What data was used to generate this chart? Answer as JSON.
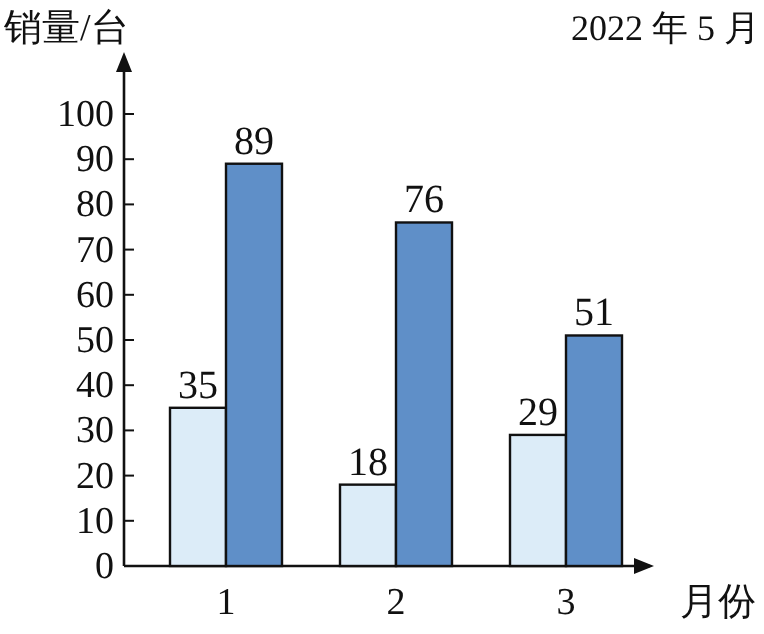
{
  "chart_data": {
    "type": "bar",
    "title": "2022 年 5 月",
    "ylabel": "销量/台",
    "xlabel": "月份",
    "categories": [
      "1",
      "2",
      "3"
    ],
    "series": [
      {
        "color": "#dcecf8",
        "values": [
          35,
          18,
          29
        ]
      },
      {
        "color": "#5f8fc8",
        "values": [
          89,
          76,
          51
        ]
      }
    ],
    "ylim": [
      0,
      100
    ],
    "yticks": [
      0,
      10,
      20,
      30,
      40,
      50,
      60,
      70,
      80,
      90,
      100
    ],
    "data_labels": true,
    "grid": false
  }
}
